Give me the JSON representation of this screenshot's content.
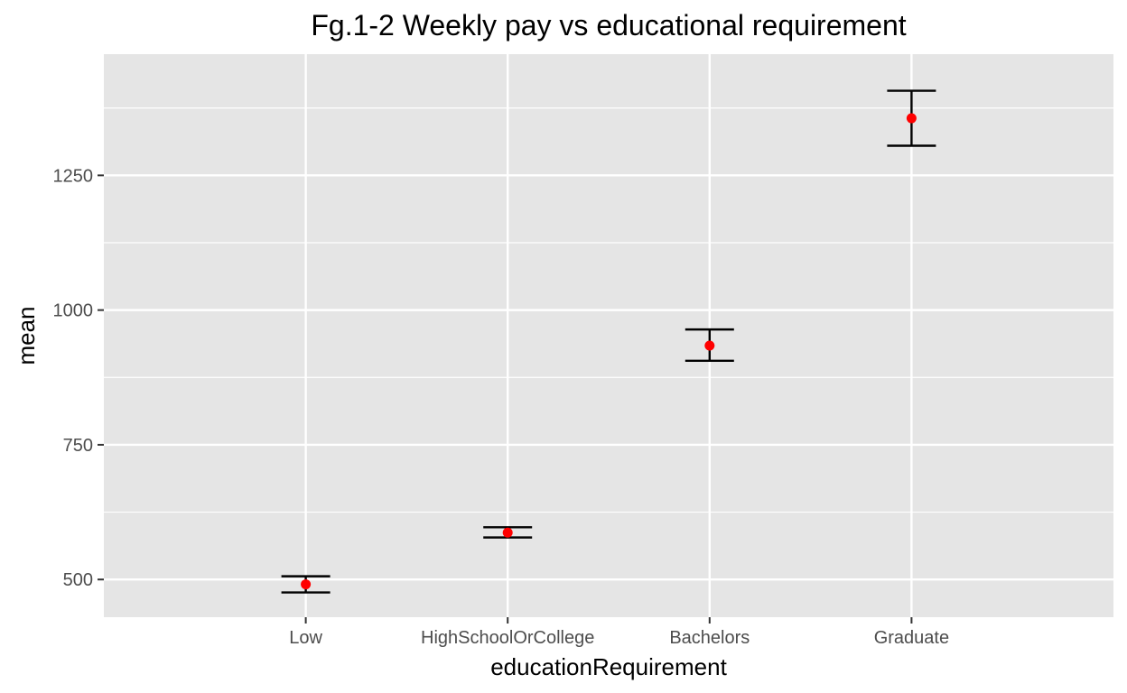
{
  "chart_data": {
    "type": "scatter",
    "title": "Fg.1-2 Weekly pay vs educational requirement",
    "xlabel": "educationRequirement",
    "ylabel": "mean",
    "categories": [
      "Low",
      "HighSchoolOrCollege",
      "Bachelors",
      "Graduate"
    ],
    "series": [
      {
        "values": [
          491,
          587,
          934,
          1356
        ],
        "error_low": [
          476,
          578,
          906,
          1305
        ],
        "error_high": [
          506,
          597,
          964,
          1407
        ]
      }
    ],
    "yticks": [
      500,
      750,
      1000,
      1250
    ],
    "ylim": [
      430,
      1475
    ],
    "grid": true,
    "colors": {
      "panel_bg": "#e5e5e5",
      "grid": "#ffffff",
      "point": "#ff0000",
      "errorbar": "#000000",
      "tick": "#333333"
    }
  }
}
